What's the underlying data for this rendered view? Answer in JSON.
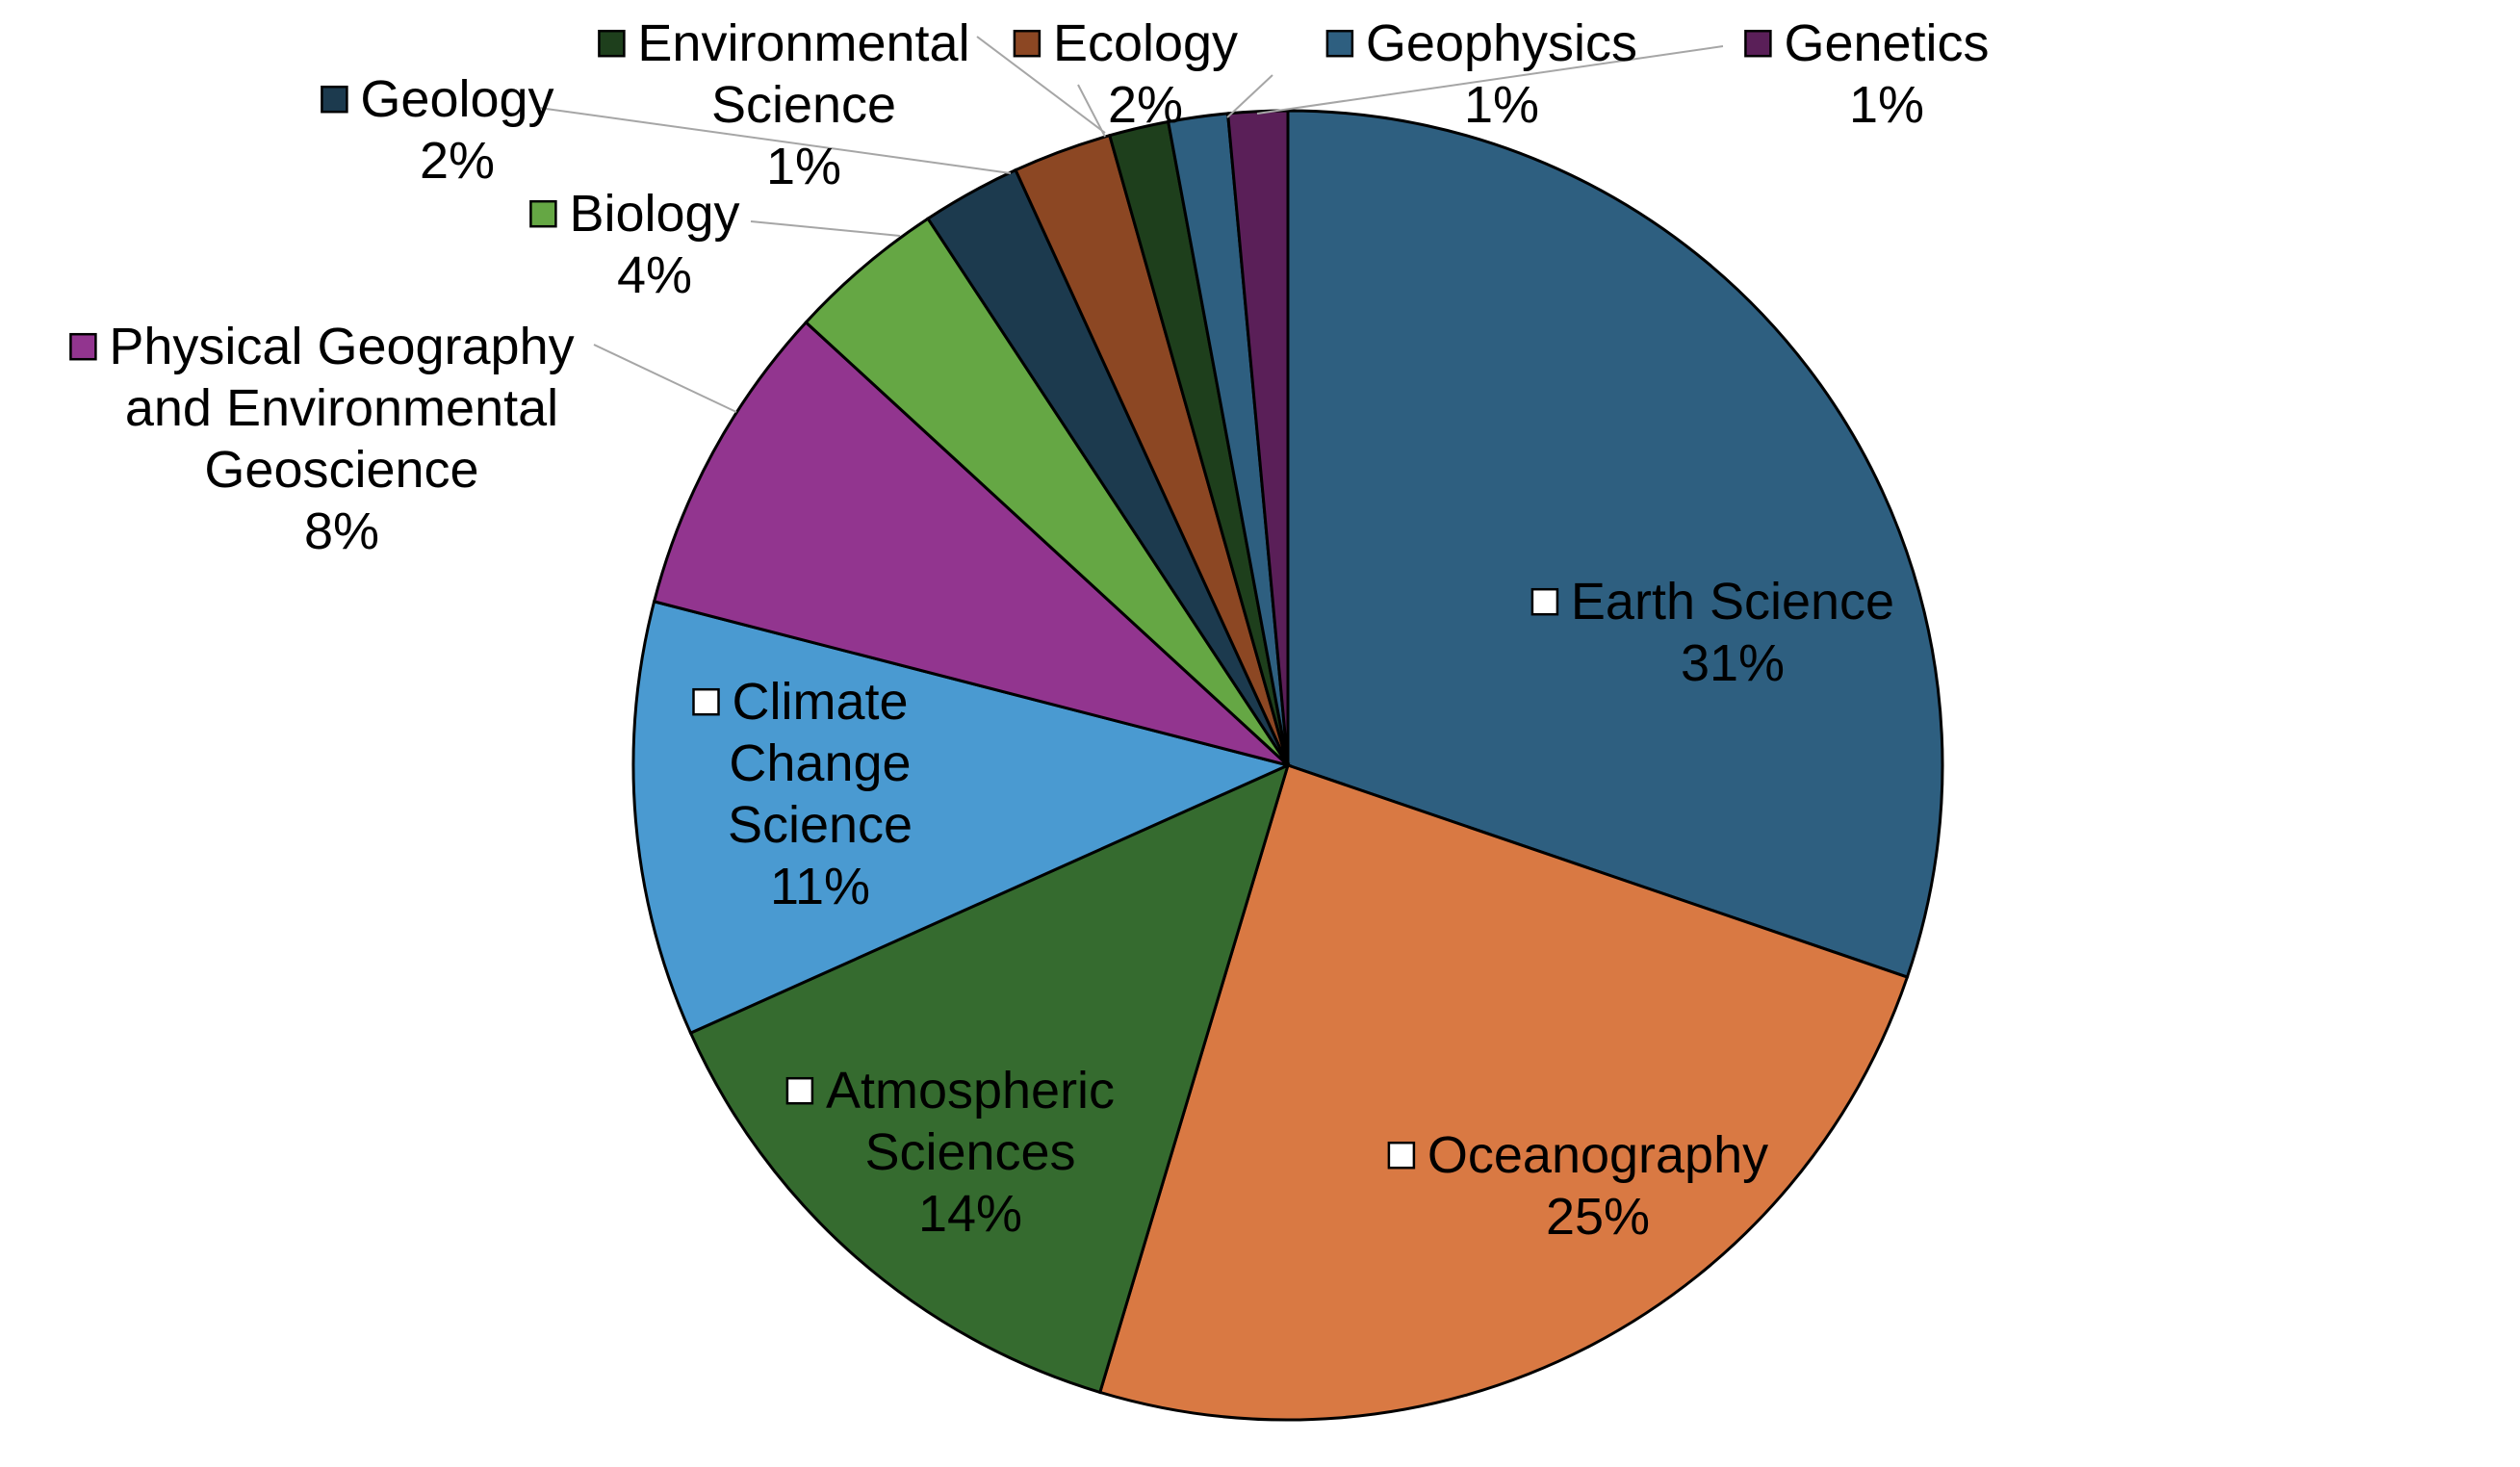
{
  "chart_data": {
    "type": "pie",
    "title": "",
    "slices": [
      {
        "label": [
          "Earth Science"
        ],
        "value": 31,
        "pct": "31%",
        "color": "#2e5f80",
        "key_color": "#ffffff"
      },
      {
        "label": [
          "Oceanography"
        ],
        "value": 25,
        "pct": "25%",
        "color": "#d97943",
        "key_color": "#ffffff"
      },
      {
        "label": [
          "Atmospheric",
          "Sciences"
        ],
        "value": 14,
        "pct": "14%",
        "color": "#356b2f",
        "key_color": "#ffffff"
      },
      {
        "label": [
          "Climate",
          "Change",
          "Science"
        ],
        "value": 11,
        "pct": "11%",
        "color": "#4a9ad1",
        "key_color": "#ffffff"
      },
      {
        "label": [
          "Physical Geography",
          "and Environmental",
          "Geoscience"
        ],
        "value": 8,
        "pct": "8%",
        "color": "#92358f",
        "key_color": "#92358f"
      },
      {
        "label": [
          "Biology"
        ],
        "value": 4,
        "pct": "4%",
        "color": "#65a744",
        "key_color": "#65a744"
      },
      {
        "label": [
          "Geology"
        ],
        "value": 2.5,
        "pct": "2%",
        "color": "#1c3a4e",
        "key_color": "#1c3a4e"
      },
      {
        "label": [
          "Ecology"
        ],
        "value": 2.5,
        "pct": "2%",
        "color": "#8c4723",
        "key_color": "#8c4723"
      },
      {
        "label": [
          "Environmental",
          "Science"
        ],
        "value": 1.5,
        "pct": "1%",
        "color": "#1e3f1c",
        "key_color": "#1e3f1c"
      },
      {
        "label": [
          "Geophysics"
        ],
        "value": 1.5,
        "pct": "1%",
        "color": "#2e5f80",
        "key_color": "#2e5f80"
      },
      {
        "label": [
          "Genetics"
        ],
        "value": 1.5,
        "pct": "1%",
        "color": "#5a1f58",
        "key_color": "#5a1f58"
      }
    ]
  }
}
